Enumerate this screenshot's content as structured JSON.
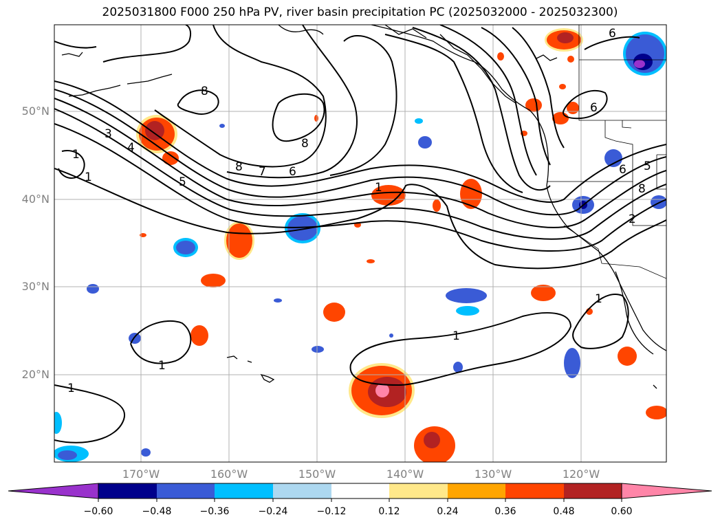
{
  "title": "2025031800 F000 250 hPa PV, river basin precipitation PC (2025032000 - 2025032300)",
  "lat_labels": [
    "50°N",
    "40°N",
    "30°N",
    "20°N"
  ],
  "lon_labels": [
    "170°W",
    "160°W",
    "150°W",
    "140°W",
    "130°W",
    "120°W"
  ],
  "pv_contour_labels": [
    "1",
    "1",
    "1",
    "1",
    "1",
    "1",
    "1",
    "2",
    "3",
    "4",
    "5",
    "5",
    "6",
    "6",
    "6",
    "6",
    "7",
    "8",
    "8",
    "8",
    "8"
  ],
  "colorbar": {
    "ticks": [
      "−0.60",
      "−0.48",
      "−0.36",
      "−0.24",
      "−0.12",
      "0.12",
      "0.24",
      "0.36",
      "0.48",
      "0.60"
    ],
    "colors": [
      "#9932cc",
      "#00008b",
      "#3a5bd6",
      "#00bfff",
      "#add8f0",
      "#ffffff",
      "#ffe88a",
      "#ffa500",
      "#ff4500",
      "#b22222",
      "#ff85a8"
    ]
  }
}
